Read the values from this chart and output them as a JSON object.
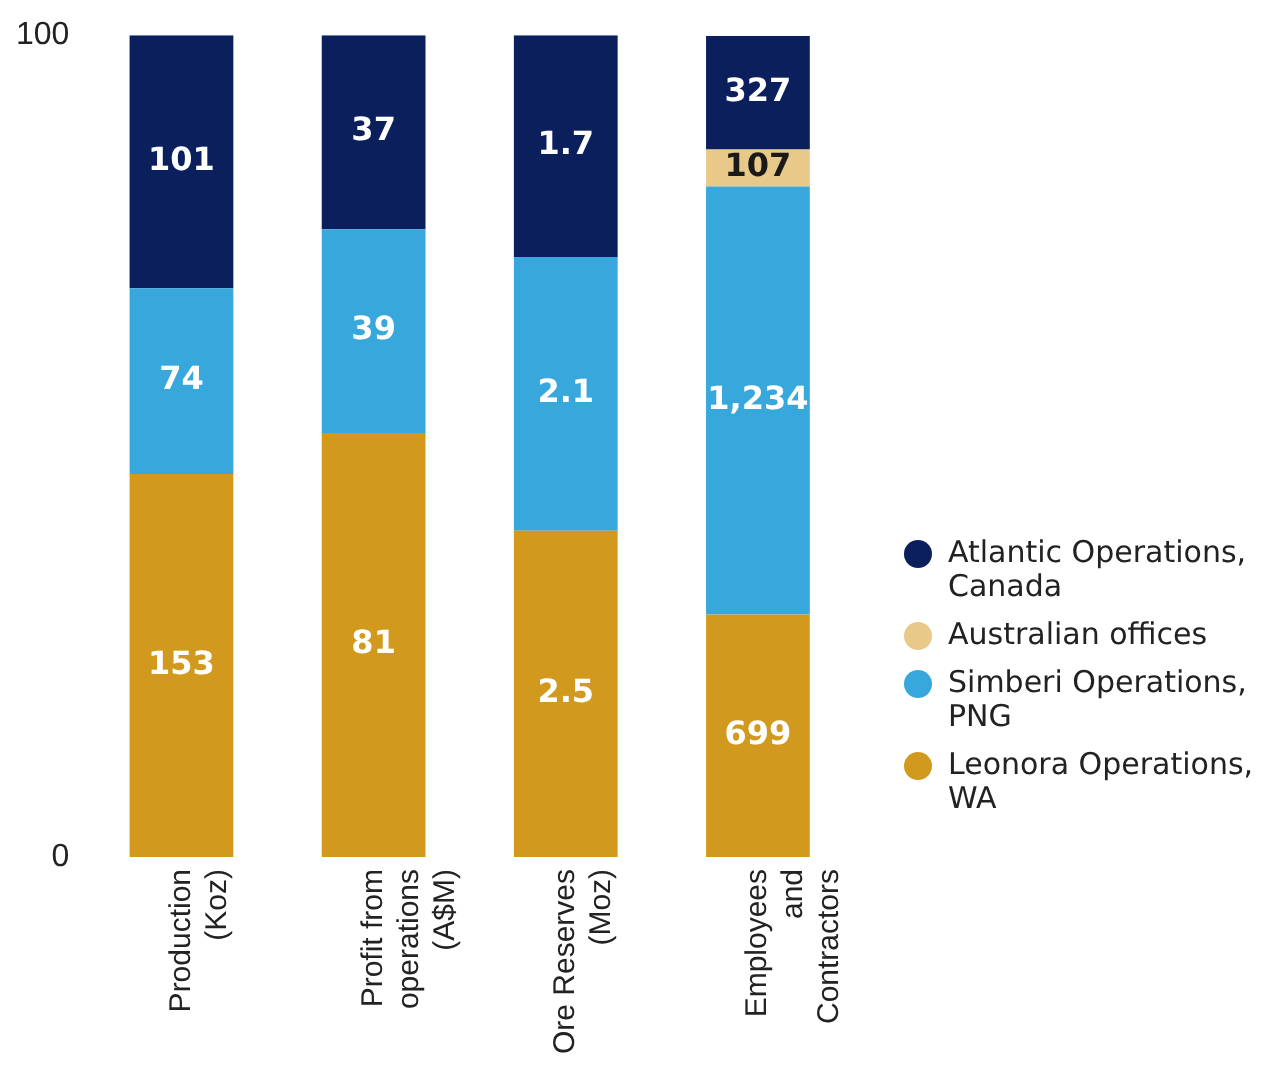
{
  "chart_data": {
    "type": "bar",
    "stacked": true,
    "categories": [
      "Production (Koz)",
      "Profit from operations (A$M)",
      "Ore Reserves (Moz)",
      "Employees and Contractors"
    ],
    "ylim": [
      0,
      100
    ],
    "yticks": [
      0,
      100
    ],
    "grid": false,
    "legend": "right",
    "series": [
      {
        "name": "Leonora Operations, WA",
        "color": "#d19a1e",
        "values": [
          46.6,
          51.6,
          39.7,
          29.5
        ]
      },
      {
        "name": "Simberi Operations, PNG",
        "color": "#38a8dc",
        "values": [
          22.6,
          24.8,
          33.3,
          52.1
        ]
      },
      {
        "name": "Australian offices",
        "color": "#e9c98a",
        "values": [
          null,
          null,
          null,
          4.5
        ]
      },
      {
        "name": "Atlantic Operations, Canada",
        "color": "#0a1f5c",
        "values": [
          30.8,
          23.6,
          27.0,
          13.8
        ]
      }
    ],
    "annotations": [
      "153",
      "81",
      "2.5",
      "699",
      "74",
      "39",
      "2.1",
      "1,234",
      "107",
      "101",
      "37",
      "1.7",
      "327"
    ]
  }
}
